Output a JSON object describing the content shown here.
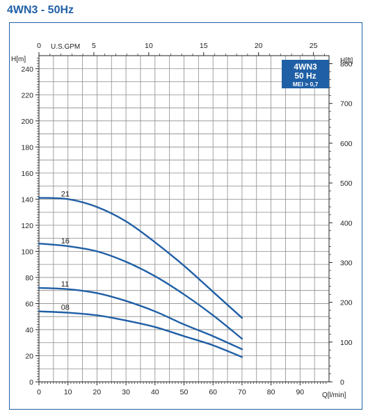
{
  "title": "4WN3 - 50Hz",
  "badge": {
    "line1": "4WN3",
    "line2": "50 Hz",
    "line3": "MEI > 0,7",
    "color": "#1f5fa5"
  },
  "colors": {
    "accent": "#1f5fa5",
    "curve": "#1f5fa5",
    "grid": "#8a8a8a"
  },
  "chart_data": {
    "type": "line",
    "title": "4WN3 - 50Hz",
    "xlabel": "Q[l/min]",
    "ylabel": "H[m]",
    "y2label": "H[ft]",
    "x2label": "U.S.GPM",
    "xlim": [
      0,
      100
    ],
    "ylim": [
      0,
      250
    ],
    "x2lim": [
      0,
      26.42
    ],
    "y2lim": [
      0,
      820.2
    ],
    "x_ticks": [
      0,
      10,
      20,
      30,
      40,
      50,
      60,
      70,
      80,
      90
    ],
    "y_ticks": [
      0,
      20,
      40,
      60,
      80,
      100,
      120,
      140,
      160,
      180,
      200,
      220,
      240
    ],
    "x2_ticks": [
      0,
      5,
      10,
      15,
      20,
      25
    ],
    "y2_ticks": [
      0,
      100,
      200,
      300,
      400,
      500,
      600,
      700,
      800
    ],
    "grid": true,
    "series": [
      {
        "name": "21",
        "x": [
          0,
          10,
          20,
          30,
          40,
          50,
          60,
          70
        ],
        "y": [
          141,
          140,
          134,
          123,
          107,
          89,
          69,
          49
        ]
      },
      {
        "name": "16",
        "x": [
          0,
          10,
          20,
          30,
          40,
          50,
          60,
          70
        ],
        "y": [
          106,
          104,
          100,
          92,
          81,
          67,
          51,
          33
        ]
      },
      {
        "name": "11",
        "x": [
          0,
          10,
          20,
          30,
          40,
          50,
          60,
          70
        ],
        "y": [
          72,
          71,
          68,
          62,
          54,
          44,
          35,
          25
        ]
      },
      {
        "name": "08",
        "x": [
          0,
          10,
          20,
          30,
          40,
          50,
          60,
          70
        ],
        "y": [
          54,
          53,
          51,
          47,
          42,
          35,
          28,
          19
        ]
      }
    ]
  }
}
